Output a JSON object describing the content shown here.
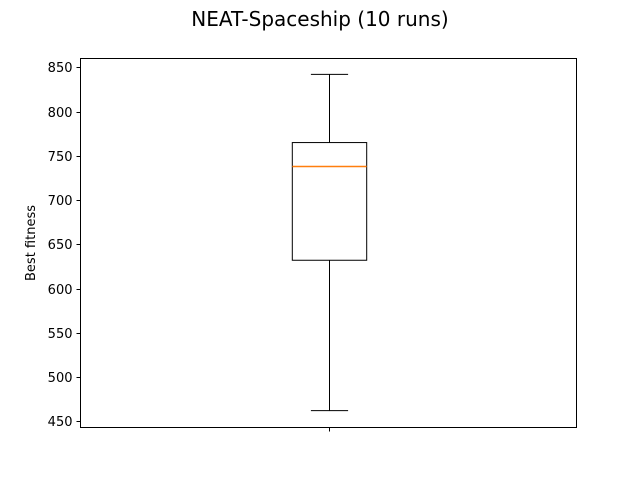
{
  "chart_data": {
    "type": "box",
    "title": "NEAT-Spaceship (10 runs)",
    "xlabel": "",
    "ylabel": "Best fitness",
    "ylim": [
      443,
      860
    ],
    "yticks": [
      450,
      500,
      550,
      600,
      650,
      700,
      750,
      800,
      850
    ],
    "ytick_labels": [
      "450",
      "500",
      "550",
      "600",
      "650",
      "700",
      "750",
      "800",
      "850"
    ],
    "grid": false,
    "boxes": [
      {
        "whisker_low": 462,
        "q1": 632,
        "median": 738,
        "q3": 765,
        "whisker_high": 842
      }
    ],
    "colors": {
      "box": "#000000",
      "median": "#ff7f0e",
      "axes": "#000000"
    }
  }
}
